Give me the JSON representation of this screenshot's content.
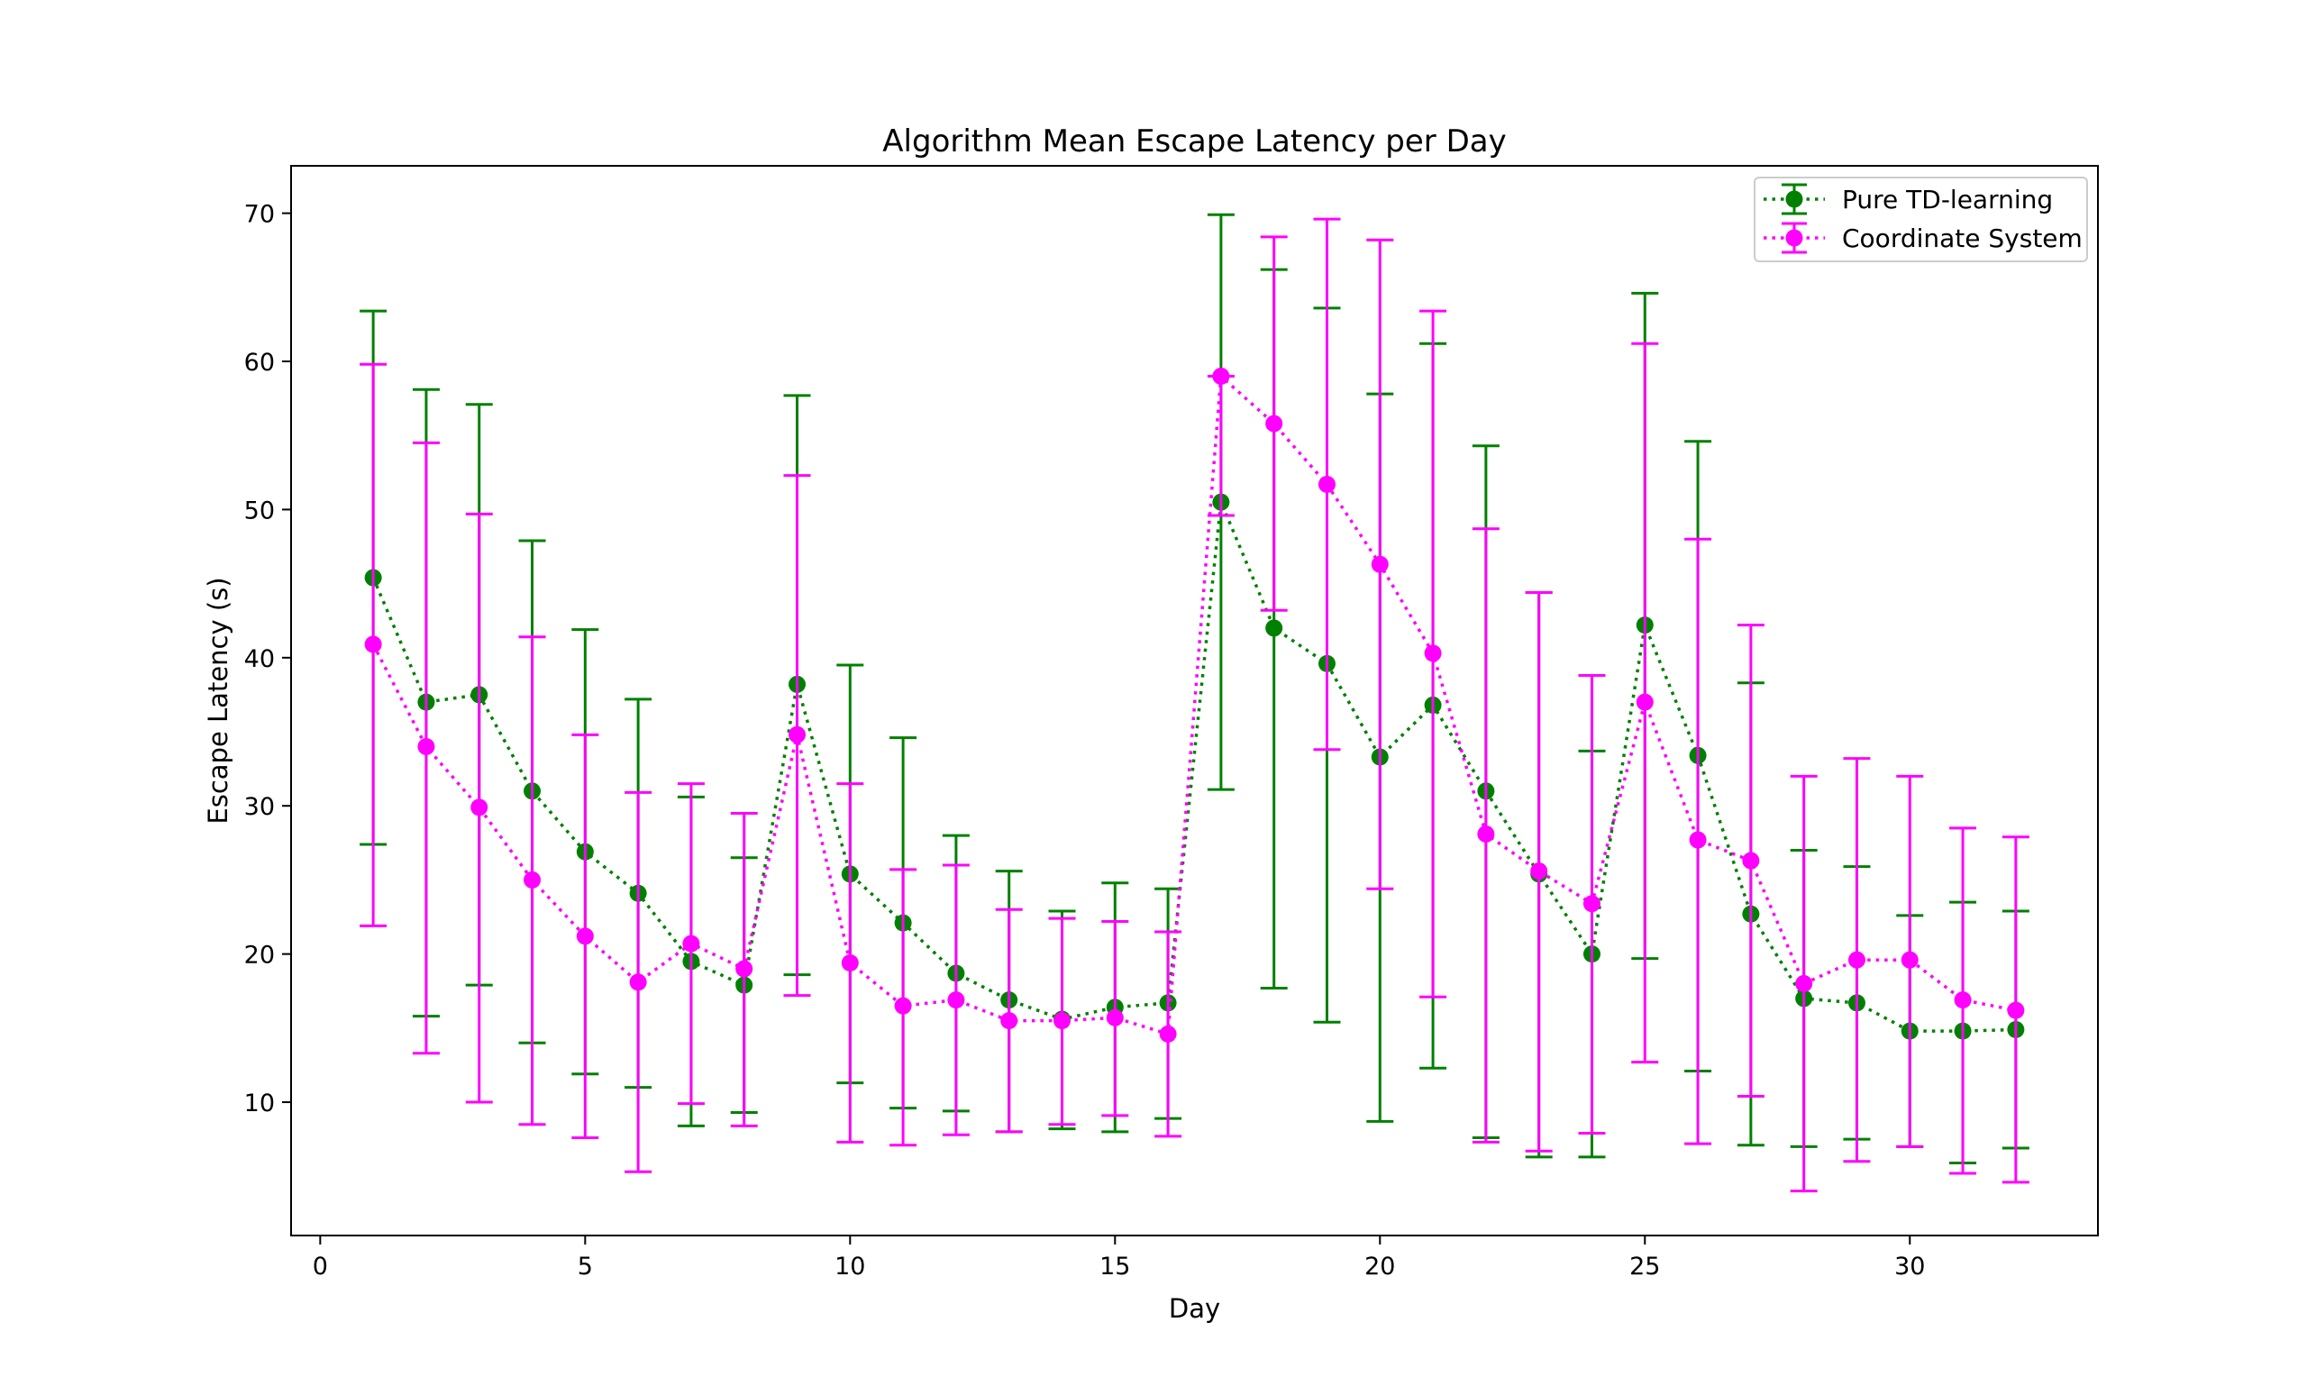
{
  "chart_data": {
    "type": "line",
    "title": "Algorithm Mean Escape Latency per Day",
    "xlabel": "Day",
    "ylabel": "Escape Latency (s)",
    "xlim": [
      -0.55,
      33.55
    ],
    "ylim": [
      1.0,
      73.2
    ],
    "xticks": [
      0,
      5,
      10,
      15,
      20,
      25,
      30
    ],
    "yticks": [
      10,
      20,
      30,
      40,
      50,
      60,
      70
    ],
    "grid": false,
    "legend_position": "top-right",
    "x": [
      1,
      2,
      3,
      4,
      5,
      6,
      7,
      8,
      9,
      10,
      11,
      12,
      13,
      14,
      15,
      16,
      17,
      18,
      19,
      20,
      21,
      22,
      23,
      24,
      25,
      26,
      27,
      28,
      29,
      30,
      31,
      32
    ],
    "series": [
      {
        "name": "Pure TD-learning",
        "color": "#008000",
        "line_style": "dotted",
        "marker": "circle",
        "values": [
          45.4,
          37.0,
          37.5,
          31.0,
          26.9,
          24.1,
          19.5,
          17.9,
          38.2,
          25.4,
          22.1,
          18.7,
          16.9,
          15.6,
          16.4,
          16.7,
          50.5,
          42.0,
          39.6,
          33.3,
          36.8,
          31.0,
          25.4,
          20.0,
          42.2,
          33.4,
          22.7,
          17.0,
          16.7,
          14.8,
          14.8,
          14.9
        ],
        "error_low": [
          27.4,
          15.8,
          17.9,
          14.0,
          11.9,
          11.0,
          8.4,
          9.3,
          18.6,
          11.3,
          9.6,
          9.4,
          8.0,
          8.2,
          8.0,
          8.9,
          31.1,
          17.7,
          15.4,
          8.7,
          12.3,
          7.6,
          6.3,
          6.3,
          19.7,
          12.1,
          7.1,
          7.0,
          7.5,
          7.0,
          5.9,
          6.9
        ],
        "error_high": [
          63.4,
          58.1,
          57.1,
          47.9,
          41.9,
          37.2,
          30.6,
          26.5,
          57.7,
          39.5,
          34.6,
          28.0,
          25.6,
          22.9,
          24.8,
          24.4,
          69.9,
          66.2,
          63.6,
          57.8,
          61.2,
          54.3,
          44.4,
          33.7,
          64.6,
          54.6,
          38.3,
          27.0,
          25.9,
          22.6,
          23.5,
          22.9
        ]
      },
      {
        "name": "Coordinate System",
        "color": "#ff00ff",
        "line_style": "dotted",
        "marker": "circle",
        "values": [
          40.9,
          34.0,
          29.9,
          25.0,
          21.2,
          18.1,
          20.7,
          19.0,
          34.8,
          19.4,
          16.5,
          16.9,
          15.5,
          15.5,
          15.7,
          14.6,
          59.0,
          55.8,
          51.7,
          46.3,
          40.3,
          28.1,
          25.6,
          23.4,
          37.0,
          27.7,
          26.3,
          18.0,
          19.6,
          19.6,
          16.9,
          16.2
        ],
        "error_low": [
          21.9,
          13.3,
          10.0,
          8.5,
          7.6,
          5.3,
          9.9,
          8.4,
          17.2,
          7.3,
          7.1,
          7.8,
          8.0,
          8.5,
          9.1,
          7.7,
          49.6,
          43.2,
          33.8,
          24.4,
          17.1,
          7.3,
          6.7,
          7.9,
          12.7,
          7.2,
          10.4,
          4.0,
          6.0,
          7.0,
          5.2,
          4.6
        ],
        "error_high": [
          59.8,
          54.5,
          49.7,
          41.4,
          34.8,
          30.9,
          31.5,
          29.5,
          52.3,
          31.5,
          25.7,
          26.0,
          23.0,
          22.4,
          22.2,
          21.5,
          59.0,
          68.4,
          69.6,
          68.2,
          63.4,
          48.7,
          44.4,
          38.8,
          61.2,
          48.0,
          42.2,
          32.0,
          33.2,
          32.0,
          28.5,
          27.9
        ]
      }
    ]
  }
}
